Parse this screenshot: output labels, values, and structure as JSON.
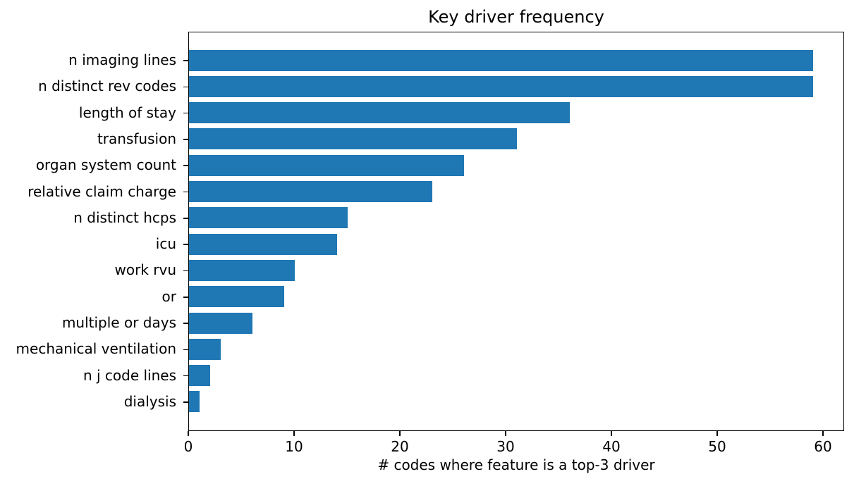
{
  "chart_data": {
    "type": "bar",
    "orientation": "horizontal",
    "title": "Key driver frequency",
    "xlabel": "# codes where feature is a top-3 driver",
    "ylabel": "",
    "categories": [
      "n imaging lines",
      "n distinct rev codes",
      "length of stay",
      "transfusion",
      "organ system count",
      "relative claim charge",
      "n distinct hcps",
      "icu",
      "work rvu",
      "or",
      "multiple or days",
      "mechanical ventilation",
      "n j code lines",
      "dialysis"
    ],
    "values": [
      59,
      59,
      36,
      31,
      26,
      23,
      15,
      14,
      10,
      9,
      6,
      3,
      2,
      1
    ],
    "xticks": [
      0,
      10,
      20,
      30,
      40,
      50,
      60
    ],
    "xlim": [
      0,
      62
    ],
    "grid": false,
    "legend": null,
    "bar_color": "#1f77b4",
    "text_color": "#000000"
  }
}
